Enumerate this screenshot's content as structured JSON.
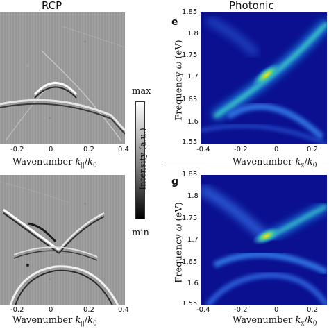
{
  "titles": {
    "left": "RCP",
    "right": "Photonic"
  },
  "panel_letters": {
    "top_right": "e",
    "bottom_right": "g"
  },
  "colorbar": {
    "max": "max",
    "min": "min",
    "label": "Intensity (a.u.)"
  },
  "left_xlabel_prefix": "Wavenumber ",
  "left_xlabel_symbol": "k",
  "left_xlabel_sub": "||",
  "left_xlabel_slash": "/",
  "left_xlabel_k0": "k",
  "left_xlabel_k0_sub": "0",
  "left_xticks": [
    "-0.2",
    "0",
    "0.2",
    "0.4"
  ],
  "right_xticks": [
    "-0.4",
    "-0.2",
    "0",
    "0.2"
  ],
  "right_xlabel_prefix": "Wavenumber ",
  "right_xlabel_symbol": "k",
  "right_xlabel_sub": "x",
  "right_xlabel_slash": "/",
  "right_xlabel_k0": "k",
  "right_xlabel_k0_sub": "0",
  "ylabel_text": "Frequency ",
  "ylabel_symbol": "ω",
  "ylabel_unit": " (eV)",
  "yticks": [
    "1.85",
    "1.8",
    "1.75",
    "1.7",
    "1.65",
    "1.6",
    "1.55"
  ],
  "colors": {
    "map_bg": "#0a1090",
    "map_mid": "#1e88e5",
    "map_hot": "#ffe600"
  }
}
